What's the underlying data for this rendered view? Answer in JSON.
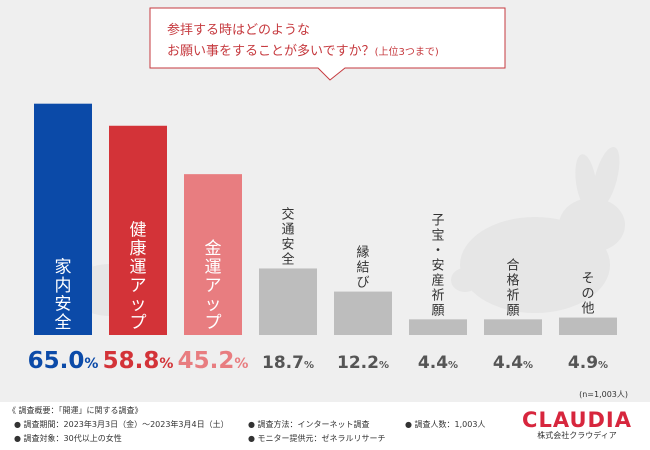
{
  "chart_data": {
    "type": "bar",
    "title_line1": "参拝する時はどのような",
    "title_line2": "お願い事をすることが多いですか？",
    "title_suffix": "(上位3つまで)",
    "categories": [
      "家内安全",
      "健康運アップ",
      "金運アップ",
      "交通安全",
      "縁結び",
      "子宝・安産祈願",
      "合格祈願",
      "その他"
    ],
    "values": [
      65.0,
      58.8,
      45.2,
      18.7,
      12.2,
      4.4,
      4.4,
      4.9
    ],
    "value_labels": [
      {
        "num": "65.0",
        "unit": "%"
      },
      {
        "num": "58.8",
        "unit": "%"
      },
      {
        "num": "45.2",
        "unit": "%"
      },
      {
        "num": "18.7",
        "unit": "%"
      },
      {
        "num": "12.2",
        "unit": "%"
      },
      {
        "num": "4.4",
        "unit": "%"
      },
      {
        "num": "4.4",
        "unit": "%"
      },
      {
        "num": "4.9",
        "unit": "%"
      }
    ],
    "colors": [
      "#0b4aa8",
      "#d33338",
      "#e87d80",
      "#bdbdbd",
      "#bdbdbd",
      "#bdbdbd",
      "#bdbdbd",
      "#bdbdbd"
    ],
    "label_colors": [
      "#0b4aa8",
      "#d33338",
      "#e87d80",
      "#555555",
      "#555555",
      "#555555",
      "#555555",
      "#555555"
    ],
    "ylim": [
      0,
      70
    ],
    "sample_note": "(n=1,003人)"
  },
  "footer": {
    "heading": "《 調査概要：「開運」に関する調査》",
    "period": "調査期間：2023年3月3日（金）～2023年3月4日（土）",
    "target": "調査対象：30代以上の女性",
    "method": "調査方法：インターネット調査",
    "provider": "モニター提供元：ゼネラルリサーチ",
    "count": "調査人数：1,003人"
  },
  "brand": {
    "name": "CLAUDIA",
    "sub": "株式会社クラウディア"
  }
}
